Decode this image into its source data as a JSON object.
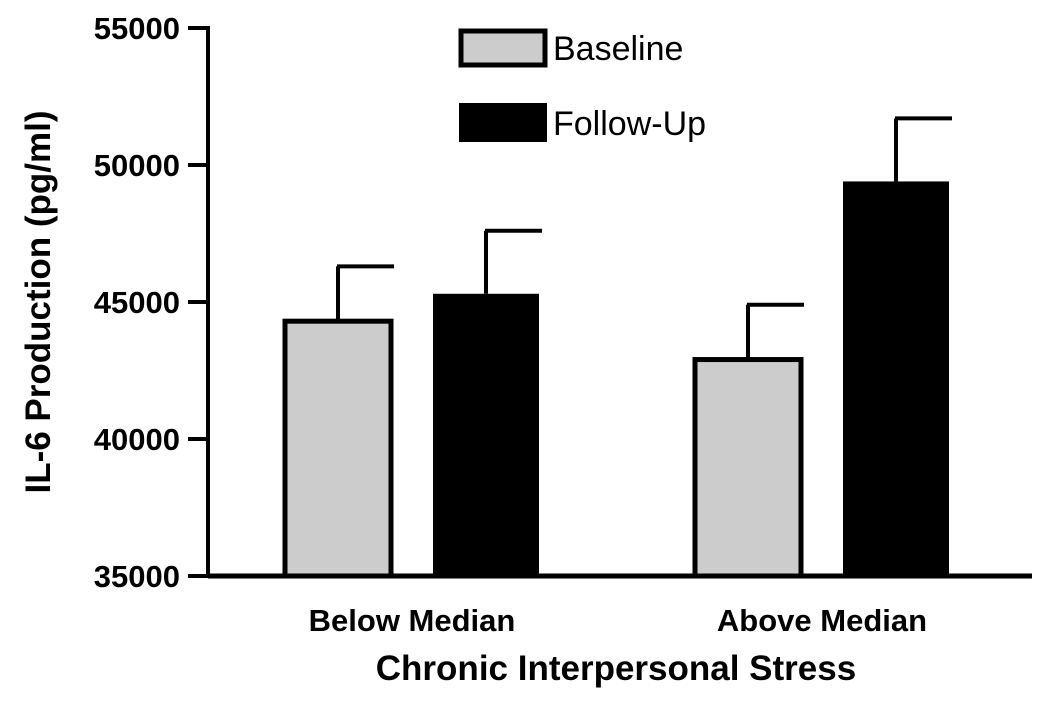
{
  "chart_data": {
    "type": "bar",
    "title": "",
    "xlabel": "Chronic Interpersonal Stress",
    "ylabel": "IL-6 Production (pg/ml)",
    "ylim": [
      35000,
      55000
    ],
    "yticks": [
      "35000",
      "40000",
      "45000",
      "50000",
      "55000"
    ],
    "categories": [
      "Below Median",
      "Above Median"
    ],
    "legend_position": "top-center",
    "series": [
      {
        "name": "Baseline",
        "color": "#cccccc",
        "values": [
          44300,
          42900
        ],
        "errors": [
          2000,
          2000
        ]
      },
      {
        "name": "Follow-Up",
        "color": "#000000",
        "values": [
          45300,
          49400
        ],
        "errors": [
          2300,
          2300
        ]
      }
    ]
  }
}
